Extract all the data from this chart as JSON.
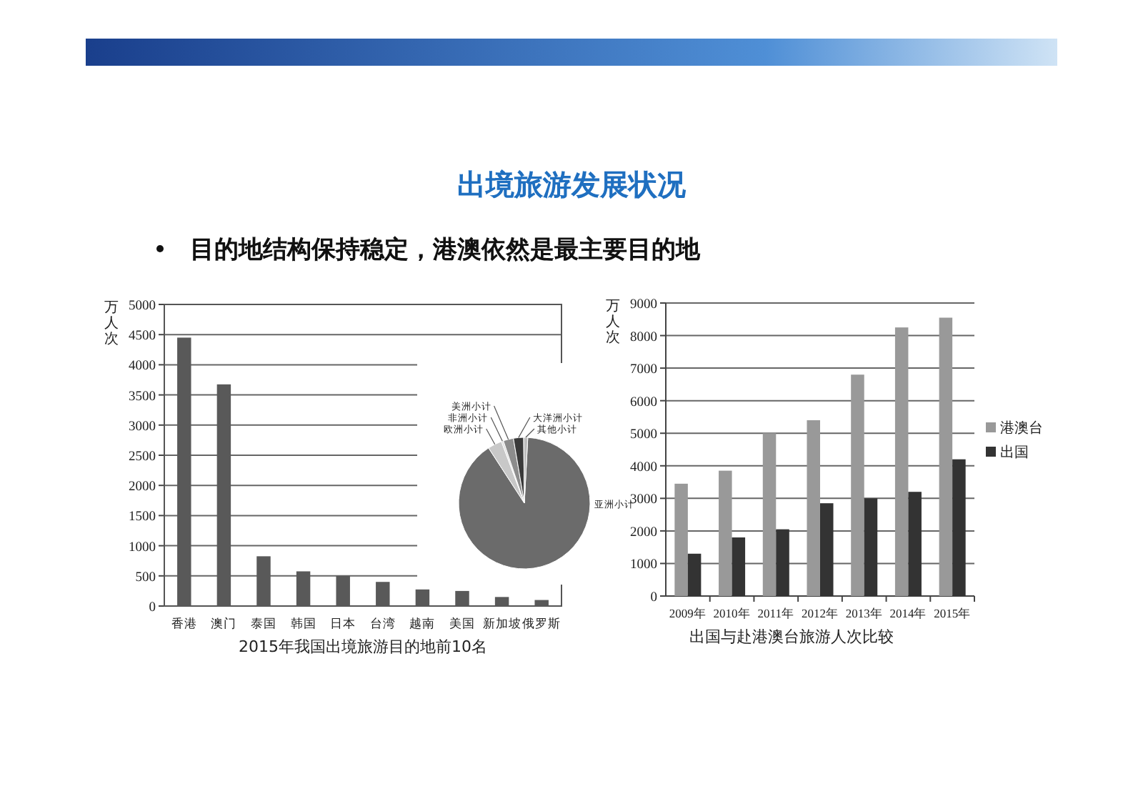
{
  "chart_data": [
    {
      "type": "bar",
      "title": "出境旅游发展状况",
      "subtitle": "目的地结构保持稳定，港澳依然是最主要目的地",
      "ylabel": "万人次",
      "annotations": [
        "2015年我国出境旅游目的地前10名"
      ],
      "categories": [
        "香港",
        "澳门",
        "泰国",
        "韩国",
        "日本",
        "台湾",
        "越南",
        "美国",
        "新加坡",
        "俄罗斯"
      ],
      "values": [
        4450,
        3675,
        825,
        575,
        500,
        400,
        275,
        250,
        150,
        100
      ],
      "color": "#595959",
      "ylim": [
        0,
        5000
      ],
      "yticks": [
        0,
        500,
        1000,
        1500,
        2000,
        2500,
        3000,
        3500,
        4000,
        4500,
        5000
      ],
      "grid": "y"
    },
    {
      "type": "pie",
      "categories": [
        "亚洲小计",
        "欧洲小计",
        "非洲小计",
        "美洲小计",
        "大洋洲小计",
        "其他小计"
      ],
      "values": [
        90,
        3.5,
        0.5,
        2.5,
        2.5,
        1
      ],
      "colors": [
        "#6b6b6b",
        "#c8c8c8",
        "#dedede",
        "#8c8c8c",
        "#3a3a3a",
        "#bdbdbd"
      ]
    },
    {
      "type": "bar",
      "ylabel": "万人次",
      "annotations": [
        "出国与赴港澳台旅游人次比较"
      ],
      "categories": [
        "2009年",
        "2010年",
        "2011年",
        "2012年",
        "2013年",
        "2014年",
        "2015年"
      ],
      "series": [
        {
          "name": "港澳台",
          "color": "#999999",
          "values": [
            3450,
            3850,
            5000,
            5400,
            6800,
            8250,
            8550
          ]
        },
        {
          "name": "出国",
          "color": "#333333",
          "values": [
            1300,
            1800,
            2050,
            2850,
            3000,
            3200,
            4200
          ]
        }
      ],
      "ylim": [
        0,
        9000
      ],
      "yticks": [
        0,
        1000,
        2000,
        3000,
        4000,
        5000,
        6000,
        7000,
        8000,
        9000
      ],
      "grid": "y",
      "legend": "right"
    }
  ]
}
